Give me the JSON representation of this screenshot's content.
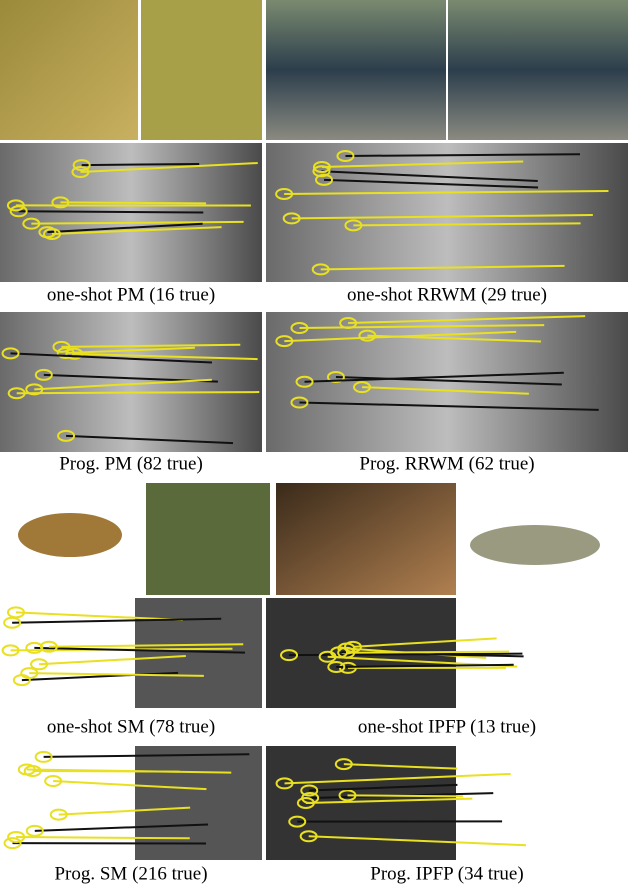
{
  "panels": [
    {
      "caption": "one-shot PM (16 true)"
    },
    {
      "caption": "one-shot RRWM (29 true)"
    },
    {
      "caption": "Prog. PM (82 true)"
    },
    {
      "caption": "Prog. RRWM (62 true)"
    },
    {
      "caption": "one-shot SM (78 true)"
    },
    {
      "caption": "one-shot IPFP (13 true)"
    },
    {
      "caption": "Prog. SM (216 true)"
    },
    {
      "caption": "Prog. IPFP (34 true)"
    }
  ]
}
